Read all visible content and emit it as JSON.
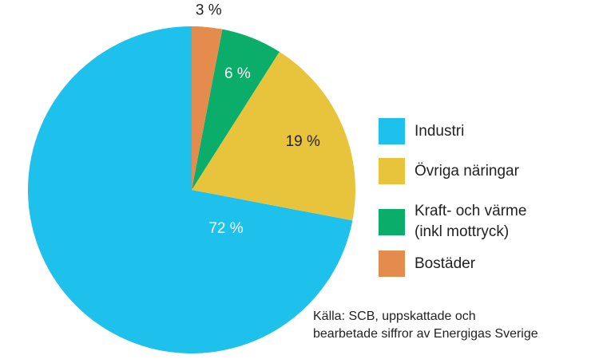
{
  "chart_data": {
    "type": "pie",
    "slices": [
      {
        "label": "Industri",
        "value": 72,
        "value_label": "72 %",
        "color": "#1ec0ec",
        "label_color": "#ffffff"
      },
      {
        "label": "Övriga näringar",
        "value": 19,
        "value_label": "19 %",
        "color": "#e8c43d",
        "label_color": "#222222"
      },
      {
        "label": "Kraft- och värme\n(inkl mottryck)",
        "value": 6,
        "value_label": "6 %",
        "color": "#0aad6a",
        "label_color": "#ffffff"
      },
      {
        "label": "Bostäder",
        "value": 3,
        "value_label": "3 %",
        "color": "#e48b4e",
        "label_color": "#222222"
      }
    ],
    "start_angle": "12 o'clock",
    "direction": "counterclockwise",
    "legend_position": "right"
  },
  "source": "Källa: SCB, uppskattade och\nbearbetade siffror av Energigas Sverige"
}
